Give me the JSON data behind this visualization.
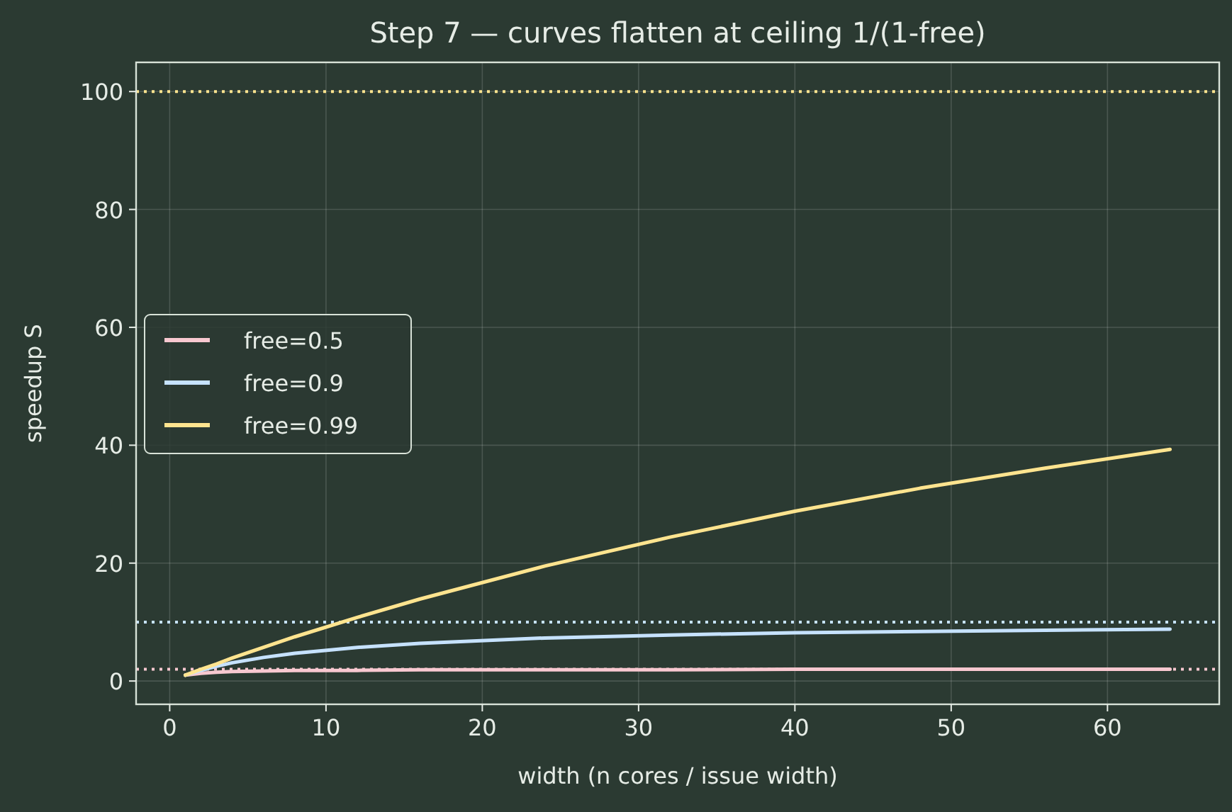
{
  "chart_data": {
    "type": "line",
    "title": "Step 7 — curves flatten at ceiling 1/(1-free)",
    "xlabel": "width (n cores / issue width)",
    "ylabel": "speedup S",
    "x": [
      1,
      2,
      3,
      4,
      6,
      8,
      12,
      16,
      24,
      32,
      40,
      48,
      56,
      64
    ],
    "series": [
      {
        "name": "free=0.5",
        "color": "#f8c8d0",
        "values": [
          1,
          1.3,
          1.5,
          1.6,
          1.7,
          1.8,
          1.8,
          1.9,
          1.9,
          1.9,
          2,
          2,
          2,
          2
        ]
      },
      {
        "name": "free=0.9",
        "color": "#c6e2ff",
        "values": [
          1,
          1.8,
          2.5,
          3.1,
          4,
          4.7,
          5.7,
          6.4,
          7.3,
          7.8,
          8.2,
          8.4,
          8.6,
          8.8
        ]
      },
      {
        "name": "free=0.99",
        "color": "#ffe48f",
        "values": [
          1,
          2,
          2.9,
          3.9,
          5.7,
          7.5,
          10.8,
          13.9,
          19.5,
          24.4,
          28.8,
          32.7,
          36.1,
          39.3
        ]
      }
    ],
    "ref_lines": [
      {
        "axis": "y",
        "value": 2,
        "color": "#f8c8d0",
        "line_style": "dotted"
      },
      {
        "axis": "y",
        "value": 10,
        "color": "#c6e2ff",
        "line_style": "dotted"
      },
      {
        "axis": "y",
        "value": 100,
        "color": "#ffe48f",
        "line_style": "dotted"
      }
    ],
    "xlim": [
      -2.15,
      67.15
    ],
    "ylim": [
      -3.95,
      104.95
    ],
    "xticks": [
      0,
      10,
      20,
      30,
      40,
      50,
      60
    ],
    "yticks": [
      0,
      20,
      40,
      60,
      80,
      100
    ],
    "grid": true,
    "legend": "left",
    "marker": "none",
    "line_style": "solid"
  }
}
